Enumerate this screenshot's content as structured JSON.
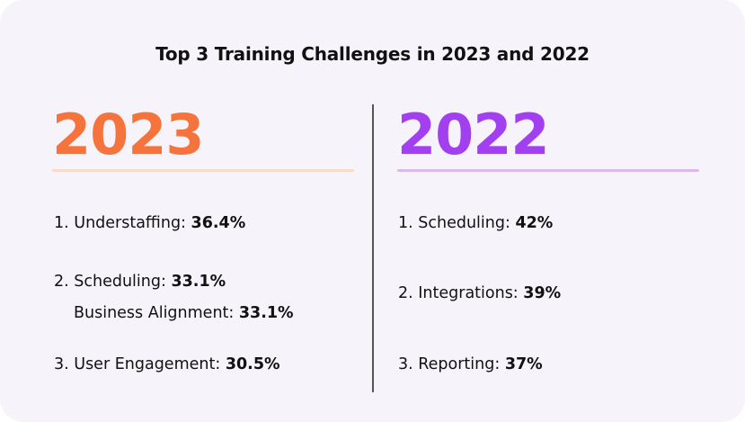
{
  "title": "Top 3 Training Challenges in 2023 and 2022",
  "colors": {
    "year_2023": "#f5743d",
    "year_2022": "#a23ff0",
    "background": "#f6f3fa"
  },
  "left": {
    "year": "2023",
    "items": [
      {
        "label": "1. Understaffing:",
        "value": "36.4%"
      },
      {
        "label": "2. Scheduling:",
        "value": "33.1%"
      },
      {
        "label": "Business Alignment:",
        "value": "33.1%"
      },
      {
        "label": "3. User Engagement:",
        "value": "30.5%"
      }
    ]
  },
  "right": {
    "year": "2022",
    "items": [
      {
        "label": "1. Scheduling:",
        "value": "42%"
      },
      {
        "label": "2. Integrations:",
        "value": "39%"
      },
      {
        "label": "3. Reporting:",
        "value": "37%"
      }
    ]
  }
}
